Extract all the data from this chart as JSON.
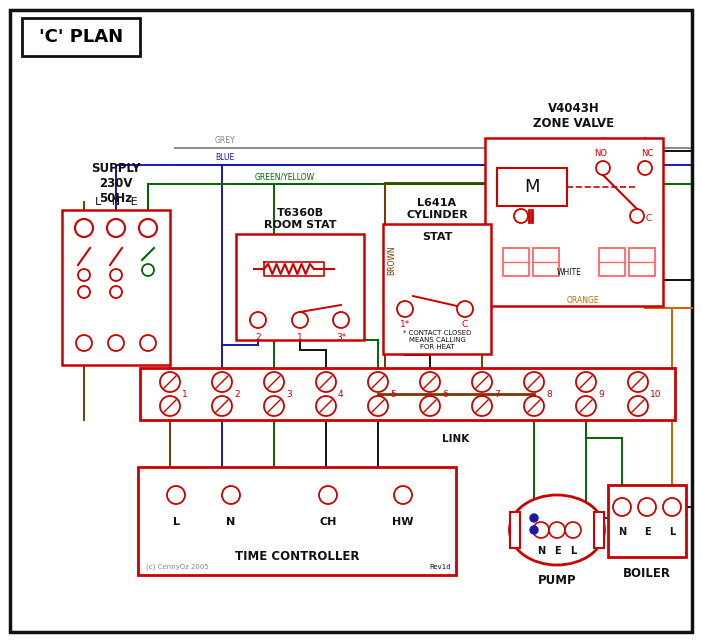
{
  "title": "'C' PLAN",
  "red": "#cc0000",
  "blue": "#1a1aaa",
  "green": "#006600",
  "brown": "#7a3800",
  "grey": "#888888",
  "orange": "#cc6600",
  "black": "#111111",
  "pink_red": "#ff6666",
  "component_labels": {
    "supply": "SUPPLY\n230V\n50Hz",
    "lne": "L   N   E",
    "zone_valve": "V4043H\nZONE VALVE",
    "room_stat": "T6360B\nROOM STAT",
    "cyl_stat": "L641A\nCYLINDER\nSTAT",
    "time_ctrl": "TIME CONTROLLER",
    "pump": "PUMP",
    "boiler": "BOILER",
    "link": "LINK",
    "contact_note": "* CONTACT CLOSED\nMEANS CALLING\nFOR HEAT"
  },
  "wire_labels": {
    "grey": "GREY",
    "blue": "BLUE",
    "green_yellow": "GREEN/YELLOW",
    "brown": "BROWN",
    "white": "WHITE",
    "orange": "ORANGE"
  },
  "copyright": "(c) CennyOz 2005",
  "rev": "Rev1d"
}
